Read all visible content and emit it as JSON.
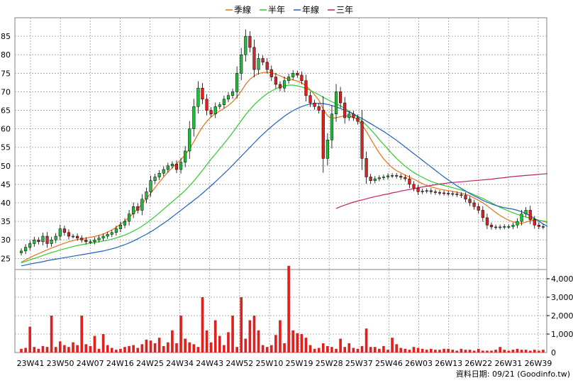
{
  "legend": [
    {
      "label": "季線",
      "color": "#e8701a"
    },
    {
      "label": "半年",
      "color": "#2ecc2e"
    },
    {
      "label": "年線",
      "color": "#2060c0"
    },
    {
      "label": "三年",
      "color": "#c0206a"
    }
  ],
  "source": "資料日期: 09/21  (Goodinfo.tw)",
  "chart_data": [
    {
      "type": "candlestick",
      "ylim": [
        22,
        90
      ],
      "yticks": [
        25,
        30,
        35,
        40,
        45,
        50,
        55,
        60,
        65,
        70,
        75,
        80,
        85
      ],
      "grid": true,
      "up_color": "#1fbf3a",
      "down_color": "#e0201f",
      "x_labels": [
        "23W41",
        "23W50",
        "24W07",
        "24W16",
        "24W25",
        "24W34",
        "24W43",
        "24W52",
        "25W10",
        "25W19",
        "25W28",
        "25W37",
        "25W46",
        "26W03",
        "26W13",
        "26W22",
        "26W31",
        "26W39"
      ],
      "closes": [
        27,
        28,
        29,
        30,
        29.5,
        31,
        29,
        30,
        31,
        33,
        32,
        31,
        31,
        30.5,
        30,
        29.5,
        29.5,
        30,
        30.5,
        31,
        31.5,
        32,
        33,
        34,
        35,
        37,
        39,
        38,
        41,
        43,
        46,
        47,
        48,
        49,
        50,
        50.5,
        49,
        51,
        54,
        60,
        66,
        71,
        68,
        65,
        64,
        66,
        66.5,
        68,
        69,
        70,
        75,
        80,
        85,
        82,
        76,
        79,
        78,
        76,
        74,
        72,
        71,
        73,
        74,
        75,
        74.5,
        73,
        69,
        67,
        66,
        65,
        52,
        57,
        64,
        70,
        67,
        63,
        64,
        63,
        62,
        52,
        47,
        46,
        46.5,
        46.8,
        47,
        47.3,
        47.4,
        47.2,
        46.9,
        46.5,
        45,
        44,
        43,
        43.2,
        43.3,
        43,
        42.8,
        42.7,
        42.6,
        42.5,
        42.4,
        42.2,
        42,
        41,
        40,
        39,
        38,
        36,
        34,
        33.5,
        33.4,
        33.5,
        33.6,
        33.6,
        34,
        35,
        37,
        38,
        35.5,
        34,
        33.6,
        33.5
      ],
      "series": [
        {
          "name": "季線",
          "values": [
            24,
            24.6,
            25.2,
            25.8,
            26.3,
            26.8,
            27.3,
            27.8,
            28.2,
            28.7,
            29.1,
            29.5,
            29.8,
            30.1,
            30.3,
            30.5,
            30.7,
            30.9,
            31.2,
            31.6,
            32.1,
            32.7,
            33.4,
            34.2,
            35.1,
            36.1,
            37.2,
            38.4,
            39.7,
            41.1,
            42.6,
            44.1,
            45.6,
            47,
            48.3,
            49.5,
            50.6,
            51.7,
            53,
            54.6,
            56.5,
            58.6,
            60.5,
            62,
            63.2,
            64.1,
            64.8,
            65.5,
            66.3,
            67.3,
            68.6,
            70.2,
            72,
            73.4,
            74.3,
            74.9,
            75.2,
            75.3,
            75.1,
            74.8,
            74.3,
            73.8,
            73.4,
            73.2,
            72.9,
            72.4,
            71.6,
            70.5,
            69.2,
            67.7,
            65.3,
            63.5,
            62.8,
            63,
            63.3,
            63.5,
            63.4,
            63.1,
            62.4,
            61.1,
            59.3,
            57.3,
            55.3,
            53.5,
            51.9,
            50.6,
            49.5,
            48.7,
            48.1,
            47.5,
            47,
            46.4,
            45.8,
            45.2,
            44.7,
            44.3,
            44,
            43.7,
            43.5,
            43.3,
            43.1,
            42.9,
            42.6,
            42.3,
            41.9,
            41.3,
            40.7,
            40,
            39.2,
            38.3,
            37.4,
            36.6,
            35.9,
            35.3,
            34.9,
            34.6,
            34.5,
            34.8,
            35.2,
            35.4,
            35.3,
            35,
            34.7
          ]
        },
        {
          "name": "半年",
          "values": [
            23.8,
            24.2,
            24.6,
            25,
            25.4,
            25.8,
            26.2,
            26.6,
            26.9,
            27.3,
            27.6,
            27.9,
            28.2,
            28.5,
            28.7,
            28.9,
            29.1,
            29.3,
            29.5,
            29.7,
            29.9,
            30.2,
            30.5,
            30.9,
            31.3,
            31.8,
            32.4,
            33,
            33.7,
            34.5,
            35.4,
            36.3,
            37.3,
            38.3,
            39.3,
            40.3,
            41.3,
            42.3,
            43.4,
            44.6,
            45.9,
            47.3,
            48.8,
            50.3,
            51.8,
            53.2,
            54.6,
            56,
            57.5,
            59,
            60.6,
            62.2,
            63.8,
            65.2,
            66.5,
            67.6,
            68.6,
            69.5,
            70.2,
            70.8,
            71.3,
            71.6,
            71.8,
            71.8,
            71.6,
            71.3,
            70.9,
            70.4,
            69.8,
            69.2,
            68.5,
            67.9,
            67.3,
            66.8,
            66.2,
            65.5,
            64.8,
            64,
            63.1,
            62.1,
            61,
            59.8,
            58.5,
            57.1,
            55.8,
            54.5,
            53.2,
            52,
            50.9,
            49.9,
            49,
            48.2,
            47.5,
            46.9,
            46.3,
            45.8,
            45.4,
            45,
            44.7,
            44.4,
            44.1,
            43.8,
            43.5,
            43.1,
            42.7,
            42.2,
            41.7,
            41.2,
            40.6,
            40,
            39.4,
            38.8,
            38.3,
            37.8,
            37.3,
            36.9,
            36.5,
            36.2,
            35.9,
            35.6,
            35.3,
            35.1,
            34.9
          ]
        },
        {
          "name": "年線",
          "values": [
            23,
            23.2,
            23.5,
            23.7,
            23.9,
            24.1,
            24.4,
            24.6,
            24.8,
            25,
            25.2,
            25.4,
            25.6,
            25.8,
            26,
            26.2,
            26.4,
            26.6,
            26.8,
            27,
            27.3,
            27.6,
            27.9,
            28.3,
            28.7,
            29.2,
            29.7,
            30.3,
            30.9,
            31.5,
            32.2,
            32.9,
            33.7,
            34.5,
            35.3,
            36.2,
            37.1,
            38,
            38.9,
            39.8,
            40.7,
            41.6,
            42.6,
            43.6,
            44.6,
            45.7,
            46.8,
            47.9,
            49,
            50.2,
            51.4,
            52.6,
            53.8,
            55,
            56.2,
            57.4,
            58.5,
            59.6,
            60.6,
            61.6,
            62.5,
            63.4,
            64.2,
            64.9,
            65.5,
            66,
            66.4,
            66.7,
            66.8,
            66.9,
            66.8,
            66.6,
            66.3,
            65.9,
            65.5,
            65,
            64.5,
            64,
            63.4,
            62.8,
            62.1,
            61.4,
            60.7,
            60,
            59.3,
            58.5,
            57.7,
            56.9,
            56,
            55.1,
            54.2,
            53.3,
            52.4,
            51.5,
            50.6,
            49.7,
            48.8,
            47.9,
            47,
            46.2,
            45.4,
            44.6,
            43.9,
            43.2,
            42.5,
            41.9,
            41.3,
            40.7,
            40.2,
            39.7,
            39.3,
            39,
            38.7,
            38.5,
            38.3,
            38,
            37.6,
            37.1,
            36.5,
            35.8,
            35,
            34.3,
            33.6
          ]
        },
        {
          "name": "三年",
          "values": [
            null,
            null,
            null,
            null,
            null,
            null,
            null,
            null,
            null,
            null,
            null,
            null,
            null,
            null,
            null,
            null,
            null,
            null,
            null,
            null,
            null,
            null,
            null,
            null,
            null,
            null,
            null,
            null,
            null,
            null,
            null,
            null,
            null,
            null,
            null,
            null,
            null,
            null,
            null,
            null,
            null,
            null,
            null,
            null,
            null,
            null,
            null,
            null,
            null,
            null,
            null,
            null,
            null,
            null,
            null,
            null,
            null,
            null,
            null,
            null,
            null,
            null,
            null,
            null,
            null,
            null,
            null,
            null,
            null,
            null,
            null,
            null,
            null,
            38.5,
            39,
            39.4,
            39.8,
            40.2,
            40.5,
            40.8,
            41.1,
            41.4,
            41.7,
            41.9,
            42.2,
            42.4,
            42.7,
            42.9,
            43.2,
            43.4,
            43.6,
            43.8,
            44.1,
            44.3,
            44.5,
            44.7,
            44.9,
            45.1,
            45.2,
            45.4,
            45.5,
            45.6,
            45.7,
            45.8,
            45.9,
            46,
            46.1,
            46.2,
            46.3,
            46.4,
            46.6,
            46.7,
            46.8,
            47,
            47.1,
            47.2,
            47.3,
            47.4,
            47.5,
            47.6,
            47.7,
            47.8,
            47.9
          ]
        }
      ]
    },
    {
      "type": "bar",
      "ylim": [
        0,
        4500
      ],
      "yticks": [
        1000,
        2000,
        3000,
        4000
      ],
      "ytick_labels": [
        "1,000",
        "2,000",
        "3,000",
        "4,000"
      ],
      "grid": true,
      "color": "#e0201f",
      "values": [
        200,
        250,
        1400,
        300,
        200,
        350,
        300,
        2000,
        300,
        600,
        400,
        300,
        550,
        400,
        2000,
        450,
        350,
        900,
        200,
        1000,
        400,
        250,
        150,
        200,
        300,
        350,
        400,
        250,
        450,
        700,
        650,
        500,
        800,
        350,
        550,
        1200,
        500,
        2000,
        750,
        550,
        450,
        300,
        3000,
        1200,
        550,
        1750,
        900,
        400,
        1100,
        2000,
        300,
        3000,
        750,
        1750,
        2000,
        1200,
        400,
        300,
        400,
        950,
        1750,
        500,
        4700,
        1200,
        1050,
        1000,
        800,
        400,
        200,
        250,
        500,
        350,
        300,
        200,
        750,
        300,
        500,
        250,
        200,
        350,
        1300,
        300,
        300,
        200,
        350,
        150,
        800,
        450,
        250,
        200,
        150,
        300,
        250,
        200,
        150,
        200,
        150,
        150,
        200,
        200,
        150,
        100,
        200,
        150,
        150,
        100,
        200,
        100,
        100,
        100,
        150,
        300,
        150,
        100,
        150,
        200,
        150,
        150,
        100,
        150,
        100,
        150,
        150,
        150
      ]
    }
  ]
}
